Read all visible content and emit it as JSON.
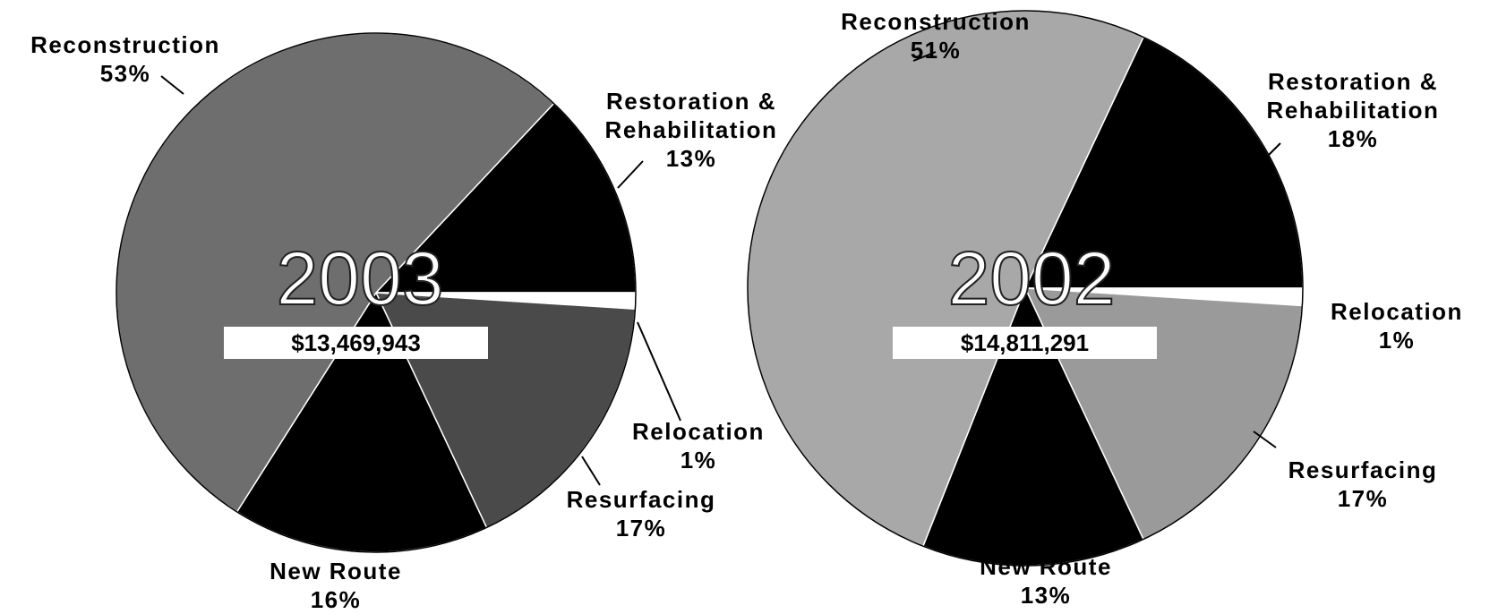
{
  "chart_data": [
    {
      "type": "pie",
      "title": "2003",
      "annotation": "$13,469,943",
      "categories": [
        "Restoration & Rehabilitation",
        "Relocation",
        "Resurfacing",
        "New Route",
        "Reconstruction"
      ],
      "values": [
        13,
        1,
        17,
        16,
        53
      ],
      "value_labels": [
        "13%",
        "1%",
        "17%",
        "16%",
        "53%"
      ],
      "colors": [
        "#000000",
        "#ffffff",
        "#4a4a4a",
        "#000000",
        "#6e6e6e"
      ]
    },
    {
      "type": "pie",
      "title": "2002",
      "annotation": "$14,811,291",
      "categories": [
        "Restoration & Rehabilitation",
        "Relocation",
        "Resurfacing",
        "New Route",
        "Reconstruction"
      ],
      "values": [
        18,
        1,
        17,
        13,
        51
      ],
      "value_labels": [
        "18%",
        "1%",
        "17%",
        "13%",
        "51%"
      ],
      "colors": [
        "#000000",
        "#ffffff",
        "#9a9a9a",
        "#000000",
        "#a8a8a8"
      ]
    }
  ]
}
